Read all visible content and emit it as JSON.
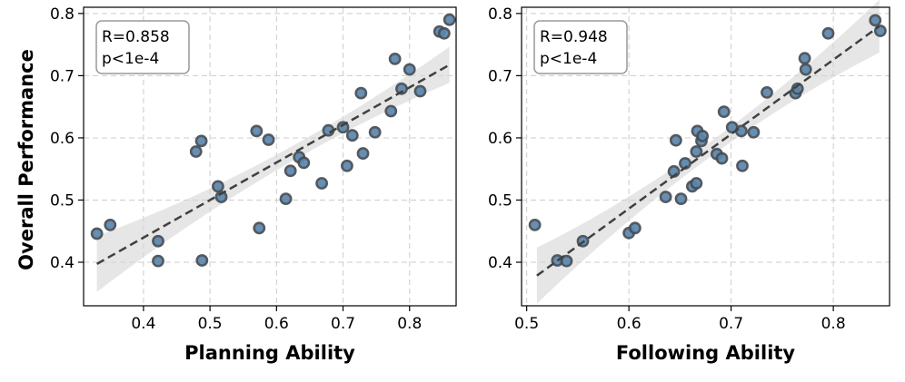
{
  "figure": {
    "ylabel": "Overall Performance"
  },
  "chart_data": [
    {
      "type": "scatter",
      "name": "planning",
      "xlabel": "Planning Ability",
      "ylabel": "Overall Performance",
      "xlim": [
        0.31,
        0.87
      ],
      "ylim": [
        0.33,
        0.81
      ],
      "xticks": [
        0.4,
        0.5,
        0.6,
        0.7,
        0.8
      ],
      "xtick_labels": [
        "0.4",
        "0.5",
        "0.6",
        "0.7",
        "0.8"
      ],
      "yticks": [
        0.4,
        0.5,
        0.6,
        0.7,
        0.8
      ],
      "ytick_labels": [
        "0.4",
        "0.5",
        "0.6",
        "0.7",
        "0.8"
      ],
      "grid": true,
      "stats": {
        "r_text": "R=0.858",
        "p_text": "p<1e-4"
      },
      "fit": {
        "slope": 0.604,
        "intercept": 0.198,
        "x_range": [
          0.33,
          0.86
        ]
      },
      "points": [
        {
          "x": 0.33,
          "y": 0.446
        },
        {
          "x": 0.35,
          "y": 0.46
        },
        {
          "x": 0.422,
          "y": 0.434
        },
        {
          "x": 0.422,
          "y": 0.402
        },
        {
          "x": 0.479,
          "y": 0.578
        },
        {
          "x": 0.487,
          "y": 0.595
        },
        {
          "x": 0.488,
          "y": 0.403
        },
        {
          "x": 0.512,
          "y": 0.522
        },
        {
          "x": 0.517,
          "y": 0.505
        },
        {
          "x": 0.57,
          "y": 0.611
        },
        {
          "x": 0.574,
          "y": 0.455
        },
        {
          "x": 0.588,
          "y": 0.597
        },
        {
          "x": 0.614,
          "y": 0.502
        },
        {
          "x": 0.621,
          "y": 0.547
        },
        {
          "x": 0.634,
          "y": 0.569
        },
        {
          "x": 0.641,
          "y": 0.56
        },
        {
          "x": 0.668,
          "y": 0.527
        },
        {
          "x": 0.678,
          "y": 0.612
        },
        {
          "x": 0.7,
          "y": 0.617
        },
        {
          "x": 0.706,
          "y": 0.555
        },
        {
          "x": 0.714,
          "y": 0.604
        },
        {
          "x": 0.727,
          "y": 0.672
        },
        {
          "x": 0.73,
          "y": 0.575
        },
        {
          "x": 0.748,
          "y": 0.609
        },
        {
          "x": 0.772,
          "y": 0.643
        },
        {
          "x": 0.778,
          "y": 0.727
        },
        {
          "x": 0.788,
          "y": 0.679
        },
        {
          "x": 0.8,
          "y": 0.71
        },
        {
          "x": 0.816,
          "y": 0.675
        },
        {
          "x": 0.845,
          "y": 0.771
        },
        {
          "x": 0.852,
          "y": 0.768
        },
        {
          "x": 0.86,
          "y": 0.79
        }
      ]
    },
    {
      "type": "scatter",
      "name": "following",
      "xlabel": "Following Ability",
      "ylabel": "",
      "xlim": [
        0.495,
        0.855
      ],
      "ylim": [
        0.33,
        0.81
      ],
      "xticks": [
        0.5,
        0.6,
        0.7,
        0.8
      ],
      "xtick_labels": [
        "0.5",
        "0.6",
        "0.7",
        "0.8"
      ],
      "yticks": [
        0.4,
        0.5,
        0.6,
        0.7,
        0.8
      ],
      "ytick_labels": [
        "0.4",
        "0.5",
        "0.6",
        "0.7",
        "0.8"
      ],
      "grid": true,
      "stats": {
        "r_text": "R=0.948",
        "p_text": "p<1e-4"
      },
      "fit": {
        "slope": 1.197,
        "intercept": -0.232,
        "x_range": [
          0.51,
          0.845
        ]
      },
      "points": [
        {
          "x": 0.508,
          "y": 0.46
        },
        {
          "x": 0.53,
          "y": 0.403
        },
        {
          "x": 0.539,
          "y": 0.402
        },
        {
          "x": 0.555,
          "y": 0.434
        },
        {
          "x": 0.6,
          "y": 0.447
        },
        {
          "x": 0.606,
          "y": 0.455
        },
        {
          "x": 0.636,
          "y": 0.505
        },
        {
          "x": 0.644,
          "y": 0.546
        },
        {
          "x": 0.646,
          "y": 0.596
        },
        {
          "x": 0.651,
          "y": 0.502
        },
        {
          "x": 0.655,
          "y": 0.559
        },
        {
          "x": 0.662,
          "y": 0.522
        },
        {
          "x": 0.666,
          "y": 0.527
        },
        {
          "x": 0.666,
          "y": 0.578
        },
        {
          "x": 0.667,
          "y": 0.611
        },
        {
          "x": 0.671,
          "y": 0.595
        },
        {
          "x": 0.672,
          "y": 0.603
        },
        {
          "x": 0.686,
          "y": 0.574
        },
        {
          "x": 0.691,
          "y": 0.567
        },
        {
          "x": 0.693,
          "y": 0.642
        },
        {
          "x": 0.701,
          "y": 0.617
        },
        {
          "x": 0.71,
          "y": 0.611
        },
        {
          "x": 0.711,
          "y": 0.555
        },
        {
          "x": 0.722,
          "y": 0.609
        },
        {
          "x": 0.735,
          "y": 0.673
        },
        {
          "x": 0.763,
          "y": 0.672
        },
        {
          "x": 0.765,
          "y": 0.679
        },
        {
          "x": 0.772,
          "y": 0.728
        },
        {
          "x": 0.773,
          "y": 0.71
        },
        {
          "x": 0.795,
          "y": 0.768
        },
        {
          "x": 0.841,
          "y": 0.789
        },
        {
          "x": 0.846,
          "y": 0.772
        }
      ]
    }
  ]
}
